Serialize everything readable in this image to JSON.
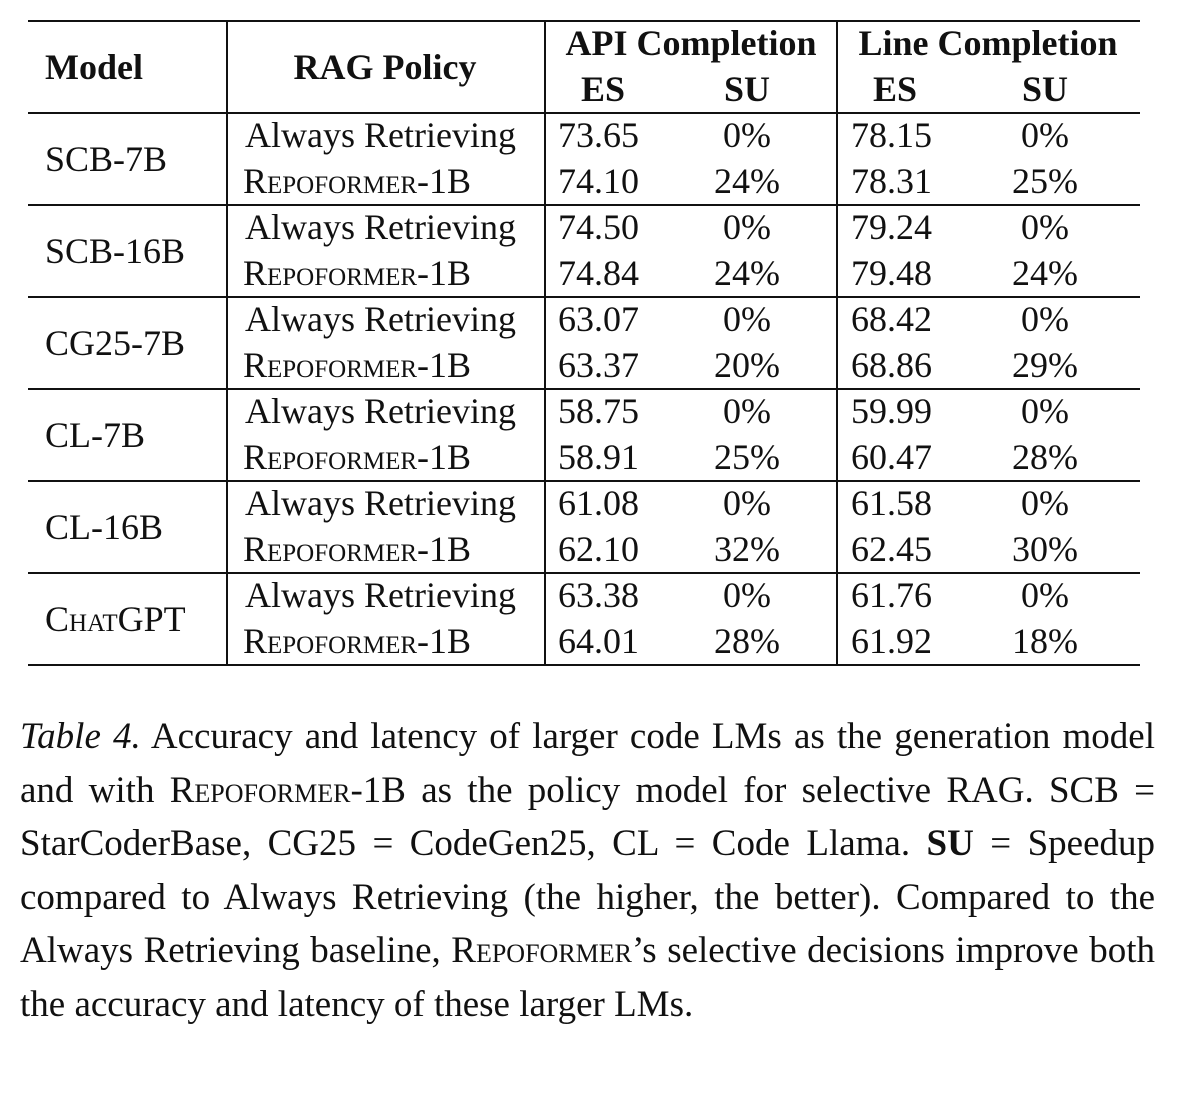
{
  "table": {
    "headers": {
      "model": "Model",
      "rag_policy": "RAG Policy",
      "api_completion": "API Completion",
      "line_completion": "Line Completion",
      "es": "ES",
      "su": "SU"
    },
    "groups": [
      {
        "model": "SCB-7B",
        "rows": [
          {
            "policy": "Always Retrieving",
            "api_es": "73.65",
            "api_su": "0%",
            "line_es": "78.15",
            "line_su": "0%"
          },
          {
            "policy": "Repoformer-1B",
            "api_es": "74.10",
            "api_su": "24%",
            "line_es": "78.31",
            "line_su": "25%"
          }
        ]
      },
      {
        "model": "SCB-16B",
        "rows": [
          {
            "policy": "Always Retrieving",
            "api_es": "74.50",
            "api_su": "0%",
            "line_es": "79.24",
            "line_su": "0%"
          },
          {
            "policy": "Repoformer-1B",
            "api_es": "74.84",
            "api_su": "24%",
            "line_es": "79.48",
            "line_su": "24%"
          }
        ]
      },
      {
        "model": "CG25-7B",
        "rows": [
          {
            "policy": "Always Retrieving",
            "api_es": "63.07",
            "api_su": "0%",
            "line_es": "68.42",
            "line_su": "0%"
          },
          {
            "policy": "Repoformer-1B",
            "api_es": "63.37",
            "api_su": "20%",
            "line_es": "68.86",
            "line_su": "29%"
          }
        ]
      },
      {
        "model": "CL-7B",
        "rows": [
          {
            "policy": "Always Retrieving",
            "api_es": "58.75",
            "api_su": "0%",
            "line_es": "59.99",
            "line_su": "0%"
          },
          {
            "policy": "Repoformer-1B",
            "api_es": "58.91",
            "api_su": "25%",
            "line_es": "60.47",
            "line_su": "28%"
          }
        ]
      },
      {
        "model": "CL-16B",
        "rows": [
          {
            "policy": "Always Retrieving",
            "api_es": "61.08",
            "api_su": "0%",
            "line_es": "61.58",
            "line_su": "0%"
          },
          {
            "policy": "Repoformer-1B",
            "api_es": "62.10",
            "api_su": "32%",
            "line_es": "62.45",
            "line_su": "30%"
          }
        ]
      },
      {
        "model": "ChatGPT",
        "rows": [
          {
            "policy": "Always Retrieving",
            "api_es": "63.38",
            "api_su": "0%",
            "line_es": "61.76",
            "line_su": "0%"
          },
          {
            "policy": "Repoformer-1B",
            "api_es": "64.01",
            "api_su": "28%",
            "line_es": "61.92",
            "line_su": "18%"
          }
        ]
      }
    ]
  },
  "caption": {
    "label": "Table 4.",
    "t1": " Accuracy and latency of larger code LMs as the generation model and with ",
    "repo1": "Repoformer-1B",
    "t2": " as the policy model for selective RAG. SCB = StarCoderBase, CG25 = CodeGen25, CL = Code Llama. ",
    "su": "SU",
    "t3": " = Speedup compared to Always Retrieving (the higher, the better). Compared to the Always Retrieving baseline, ",
    "repo2": "Repoformer",
    "t4": "’s selective decisions improve both the accuracy and latency of these larger LMs."
  }
}
